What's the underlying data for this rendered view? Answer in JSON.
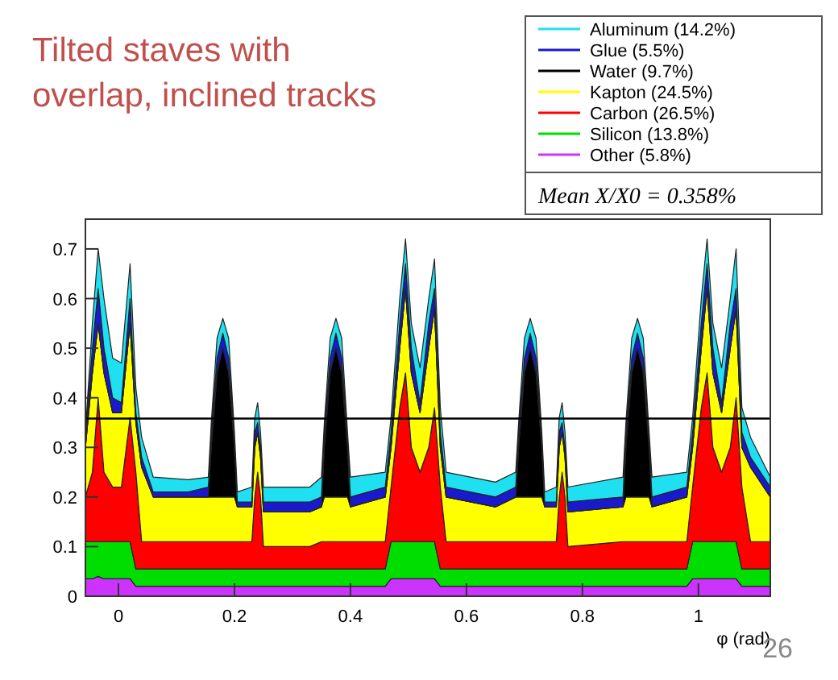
{
  "chart_data": {
    "type": "area",
    "stacked": true,
    "title": "Tilted staves with overlap, inclined tracks",
    "xlabel": "φ (rad)",
    "legend": "top right",
    "grid": false,
    "x": [
      -0.057,
      -0.045,
      -0.035,
      -0.025,
      -0.01,
      0.005,
      0.02,
      0.03,
      0.04,
      0.06,
      0.12,
      0.155,
      0.16,
      0.17,
      0.18,
      0.19,
      0.2,
      0.205,
      0.23,
      0.235,
      0.24,
      0.245,
      0.25,
      0.33,
      0.35,
      0.355,
      0.365,
      0.375,
      0.385,
      0.395,
      0.4,
      0.46,
      0.47,
      0.485,
      0.495,
      0.505,
      0.52,
      0.535,
      0.545,
      0.555,
      0.565,
      0.65,
      0.685,
      0.69,
      0.7,
      0.71,
      0.72,
      0.73,
      0.735,
      0.755,
      0.76,
      0.765,
      0.77,
      0.775,
      0.87,
      0.875,
      0.885,
      0.895,
      0.905,
      0.915,
      0.92,
      0.98,
      0.99,
      1.005,
      1.015,
      1.025,
      1.04,
      1.055,
      1.065,
      1.075,
      1.09,
      1.124
    ],
    "xlim": [
      -0.057,
      1.124
    ],
    "xticks": [
      0,
      0.2,
      0.4,
      0.6,
      0.8,
      1
    ],
    "ylim": [
      0,
      0.76
    ],
    "yticks": [
      0,
      0.1,
      0.2,
      0.3,
      0.4,
      0.5,
      0.6,
      0.7
    ],
    "series": [
      {
        "name": "Other (5.8%)",
        "color": "#cc33ff",
        "values": [
          0.035,
          0.035,
          0.04,
          0.035,
          0.035,
          0.035,
          0.035,
          0.02,
          0.02,
          0.02,
          0.02,
          0.02,
          0.02,
          0.02,
          0.02,
          0.02,
          0.02,
          0.02,
          0.02,
          0.02,
          0.02,
          0.02,
          0.02,
          0.02,
          0.02,
          0.02,
          0.02,
          0.02,
          0.02,
          0.02,
          0.02,
          0.02,
          0.035,
          0.035,
          0.035,
          0.035,
          0.035,
          0.035,
          0.035,
          0.02,
          0.02,
          0.02,
          0.02,
          0.02,
          0.02,
          0.02,
          0.02,
          0.02,
          0.02,
          0.02,
          0.02,
          0.02,
          0.02,
          0.02,
          0.02,
          0.02,
          0.02,
          0.02,
          0.02,
          0.02,
          0.02,
          0.02,
          0.035,
          0.035,
          0.035,
          0.035,
          0.035,
          0.035,
          0.035,
          0.02,
          0.02,
          0.02
        ]
      },
      {
        "name": "Silicon (13.8%)",
        "color": "#00dd00",
        "values": [
          0.075,
          0.075,
          0.07,
          0.075,
          0.075,
          0.075,
          0.075,
          0.035,
          0.035,
          0.035,
          0.035,
          0.035,
          0.035,
          0.035,
          0.035,
          0.035,
          0.035,
          0.035,
          0.035,
          0.035,
          0.035,
          0.035,
          0.035,
          0.035,
          0.035,
          0.035,
          0.035,
          0.035,
          0.035,
          0.035,
          0.035,
          0.035,
          0.075,
          0.075,
          0.075,
          0.075,
          0.075,
          0.075,
          0.075,
          0.035,
          0.035,
          0.035,
          0.035,
          0.035,
          0.035,
          0.035,
          0.035,
          0.035,
          0.035,
          0.035,
          0.035,
          0.035,
          0.035,
          0.035,
          0.035,
          0.035,
          0.035,
          0.035,
          0.035,
          0.035,
          0.035,
          0.035,
          0.075,
          0.075,
          0.075,
          0.075,
          0.075,
          0.075,
          0.075,
          0.035,
          0.035,
          0.035
        ]
      },
      {
        "name": "Carbon (26.5%)",
        "color": "#ff0000",
        "values": [
          0.09,
          0.14,
          0.29,
          0.14,
          0.11,
          0.11,
          0.25,
          0.195,
          0.055,
          0.055,
          0.055,
          0.055,
          0.055,
          0.055,
          0.055,
          0.055,
          0.055,
          0.055,
          0.055,
          0.145,
          0.195,
          0.145,
          0.045,
          0.045,
          0.055,
          0.055,
          0.055,
          0.055,
          0.055,
          0.055,
          0.055,
          0.055,
          0.11,
          0.27,
          0.34,
          0.19,
          0.14,
          0.19,
          0.27,
          0.165,
          0.055,
          0.055,
          0.055,
          0.055,
          0.055,
          0.055,
          0.055,
          0.055,
          0.055,
          0.055,
          0.145,
          0.195,
          0.145,
          0.045,
          0.055,
          0.055,
          0.055,
          0.055,
          0.055,
          0.055,
          0.055,
          0.055,
          0.11,
          0.27,
          0.34,
          0.19,
          0.14,
          0.19,
          0.29,
          0.165,
          0.055,
          0.055
        ]
      },
      {
        "name": "Kapton (24.5%)",
        "color": "#ffff00",
        "values": [
          0.1,
          0.2,
          0.15,
          0.2,
          0.15,
          0.15,
          0.19,
          0.1,
          0.15,
          0.09,
          0.09,
          0.09,
          0.09,
          0.09,
          0.09,
          0.09,
          0.09,
          0.07,
          0.07,
          0.1,
          0.08,
          0.08,
          0.07,
          0.07,
          0.07,
          0.09,
          0.09,
          0.09,
          0.09,
          0.09,
          0.07,
          0.09,
          0.08,
          0.12,
          0.17,
          0.15,
          0.12,
          0.2,
          0.2,
          0.08,
          0.09,
          0.07,
          0.09,
          0.09,
          0.09,
          0.09,
          0.09,
          0.09,
          0.07,
          0.07,
          0.1,
          0.08,
          0.08,
          0.07,
          0.07,
          0.09,
          0.09,
          0.09,
          0.09,
          0.09,
          0.07,
          0.09,
          0.08,
          0.12,
          0.17,
          0.15,
          0.12,
          0.2,
          0.18,
          0.08,
          0.15,
          0.09
        ]
      },
      {
        "name": "Water (9.7%)",
        "color": "#000000",
        "values": [
          0,
          0,
          0,
          0,
          0,
          0,
          0,
          0,
          0,
          0,
          0,
          0,
          0.1,
          0.25,
          0.3,
          0.25,
          0.1,
          0,
          0,
          0,
          0,
          0,
          0,
          0,
          0,
          0.1,
          0.25,
          0.3,
          0.25,
          0.1,
          0,
          0,
          0,
          0,
          0,
          0,
          0,
          0,
          0,
          0,
          0,
          0,
          0,
          0.1,
          0.25,
          0.3,
          0.25,
          0.1,
          0,
          0,
          0,
          0,
          0,
          0,
          0,
          0.1,
          0.25,
          0.3,
          0.25,
          0.1,
          0,
          0,
          0,
          0,
          0,
          0,
          0,
          0,
          0,
          0,
          0,
          0
        ]
      },
      {
        "name": "Glue (5.5%)",
        "color": "#1a1acc",
        "values": [
          0.02,
          0.05,
          0.07,
          0.05,
          0.03,
          0.02,
          0.05,
          0.02,
          0.02,
          0.01,
          0.01,
          0.02,
          0.03,
          0.03,
          0.03,
          0.03,
          0.01,
          0.01,
          0.01,
          0.03,
          0.02,
          0.02,
          0.02,
          0.02,
          0.02,
          0.03,
          0.03,
          0.03,
          0.03,
          0.01,
          0.02,
          0.02,
          0.03,
          0.05,
          0.05,
          0.05,
          0.02,
          0.05,
          0.04,
          0.03,
          0.02,
          0.02,
          0.02,
          0.03,
          0.03,
          0.03,
          0.03,
          0.01,
          0.01,
          0.01,
          0.03,
          0.02,
          0.02,
          0.02,
          0.02,
          0.03,
          0.03,
          0.03,
          0.03,
          0.01,
          0.02,
          0.02,
          0.03,
          0.05,
          0.05,
          0.05,
          0.02,
          0.05,
          0.04,
          0.03,
          0.02,
          0.02
        ]
      },
      {
        "name": "Aluminum (14.2%)",
        "color": "#1ee0f0",
        "values": [
          0.01,
          0.05,
          0.08,
          0.1,
          0.08,
          0.08,
          0.07,
          0.05,
          0.04,
          0.03,
          0.025,
          0.02,
          0.02,
          0.04,
          0.03,
          0.04,
          0.02,
          0.02,
          0.03,
          0.03,
          0.04,
          0.03,
          0.03,
          0.03,
          0.04,
          0.02,
          0.04,
          0.03,
          0.04,
          0.02,
          0.04,
          0.03,
          0.03,
          0.05,
          0.05,
          0.05,
          0.07,
          0.05,
          0.06,
          0.05,
          0.03,
          0.03,
          0.03,
          0.02,
          0.04,
          0.03,
          0.04,
          0.02,
          0.02,
          0.03,
          0.03,
          0.04,
          0.03,
          0.03,
          0.04,
          0.02,
          0.04,
          0.03,
          0.04,
          0.02,
          0.04,
          0.03,
          0.03,
          0.05,
          0.05,
          0.05,
          0.07,
          0.05,
          0.08,
          0.05,
          0.04,
          0.02
        ]
      }
    ],
    "ref_lines": [
      {
        "axis": "y",
        "value": 0.358,
        "color": "#000000"
      }
    ],
    "annotations": [
      "Mean X/X0 = 0.358%",
      "26"
    ]
  }
}
